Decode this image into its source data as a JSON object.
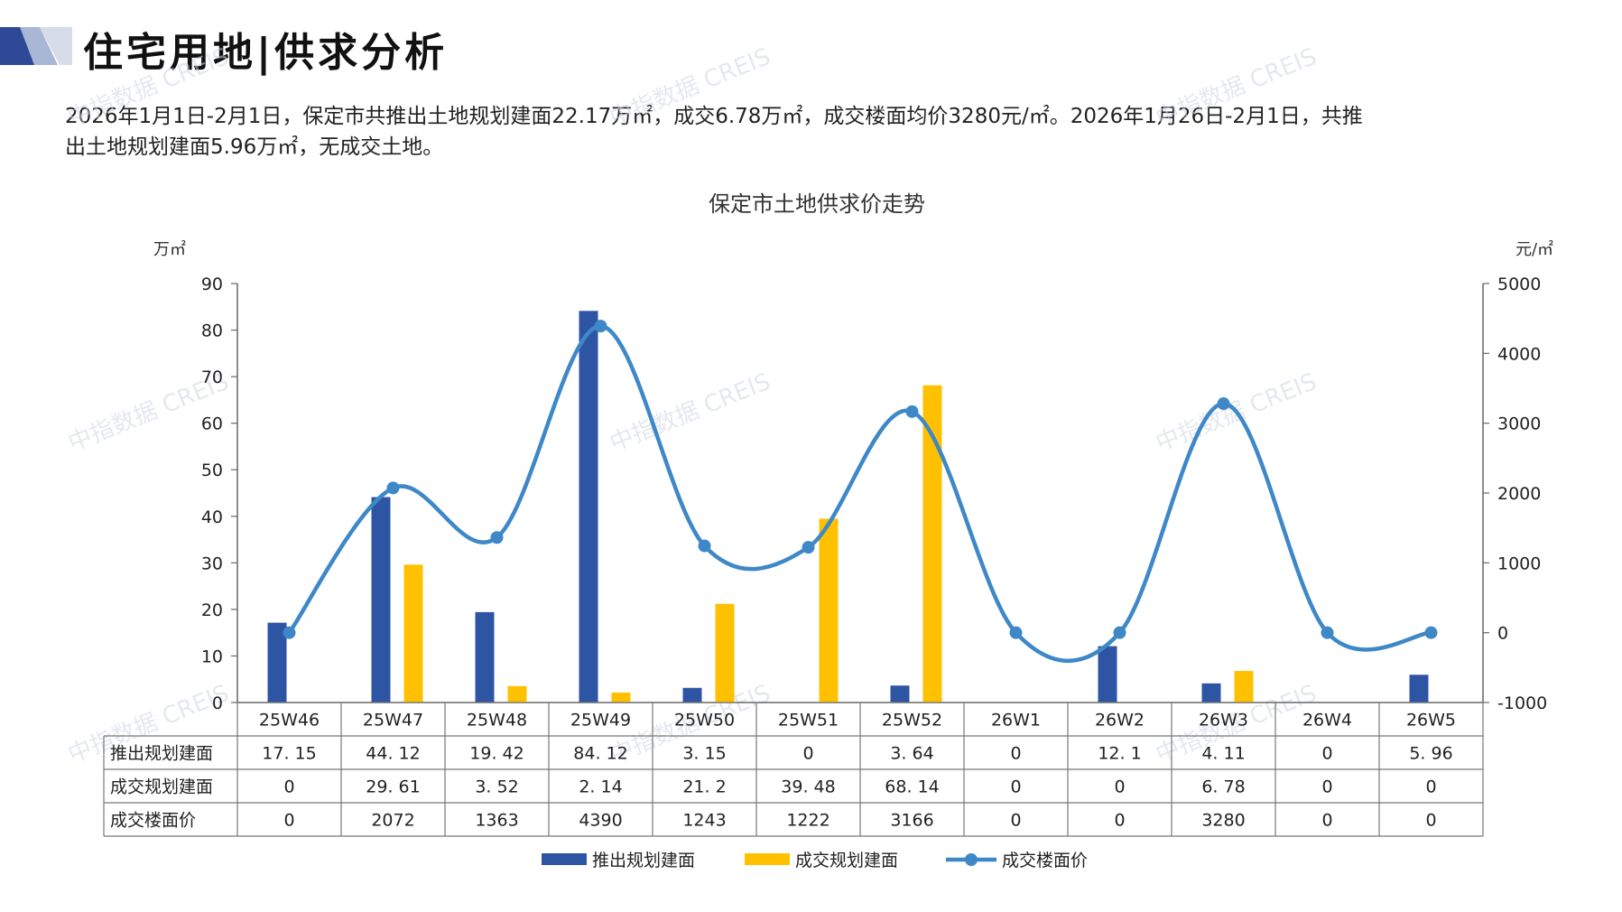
{
  "page": {
    "title": "住宅用地|供求分析",
    "summary_line1": "2026年1月1日-2月1日，保定市共推出土地规划建面22.17万㎡，成交6.78万㎡，成交楼面均价3280元/㎡。2026年1月26日-2月1日，共推",
    "summary_line2": "出土地规划建面5.96万㎡，无成交土地。",
    "watermark": "中指数据 CREIS"
  },
  "colors": {
    "supply": "#2E55A3",
    "deal": "#FFC000",
    "price": "#3E88C8",
    "logo_dark": "#2E4A96"
  },
  "chart_data": {
    "type": "bar",
    "title": "保定市土地供求价走势",
    "ylabel": "万㎡",
    "y2label": "元/㎡",
    "ylim": [
      0,
      90
    ],
    "yticks": [
      0,
      10,
      20,
      30,
      40,
      50,
      60,
      70,
      80,
      90
    ],
    "y2lim": [
      -1000,
      5000
    ],
    "y2ticks": [
      -1000,
      0,
      1000,
      2000,
      3000,
      4000,
      5000
    ],
    "categories": [
      "25W46",
      "25W47",
      "25W48",
      "25W49",
      "25W50",
      "25W51",
      "25W52",
      "26W1",
      "26W2",
      "26W3",
      "26W4",
      "26W5"
    ],
    "series": [
      {
        "name": "推出规划建面",
        "type": "bar",
        "axis": "left",
        "values": [
          17.15,
          44.12,
          19.42,
          84.12,
          3.15,
          0,
          3.64,
          0,
          12.1,
          4.11,
          0,
          5.96
        ]
      },
      {
        "name": "成交规划建面",
        "type": "bar",
        "axis": "left",
        "values": [
          0,
          29.61,
          3.52,
          2.14,
          21.2,
          39.48,
          68.14,
          0,
          0,
          6.78,
          0,
          0
        ]
      },
      {
        "name": "成交楼面价",
        "type": "line",
        "axis": "right",
        "values": [
          0,
          2072,
          1363,
          4390,
          1243,
          1222,
          3166,
          0,
          0,
          3280,
          0,
          0
        ]
      }
    ],
    "table_labels": {
      "0": "17. 15",
      "1": "44. 12",
      "2": "19. 42",
      "3": "84. 12",
      "4": "3. 15",
      "5": "0",
      "6": "3. 64",
      "7": "0",
      "8": "12. 1",
      "9": "4. 11",
      "10": "0",
      "11": "5. 96"
    },
    "table_rows": [
      {
        "label": "推出规划建面",
        "cells": [
          "17. 15",
          "44. 12",
          "19. 42",
          "84. 12",
          "3. 15",
          "0",
          "3. 64",
          "0",
          "12. 1",
          "4. 11",
          "0",
          "5. 96"
        ]
      },
      {
        "label": "成交规划建面",
        "cells": [
          "0",
          "29. 61",
          "3. 52",
          "2. 14",
          "21. 2",
          "39. 48",
          "68. 14",
          "0",
          "0",
          "6. 78",
          "0",
          "0"
        ]
      },
      {
        "label": "成交楼面价",
        "cells": [
          "0",
          "2072",
          "1363",
          "4390",
          "1243",
          "1222",
          "3166",
          "0",
          "0",
          "3280",
          "0",
          "0"
        ]
      }
    ],
    "legend_position": "bottom",
    "grid": false
  }
}
